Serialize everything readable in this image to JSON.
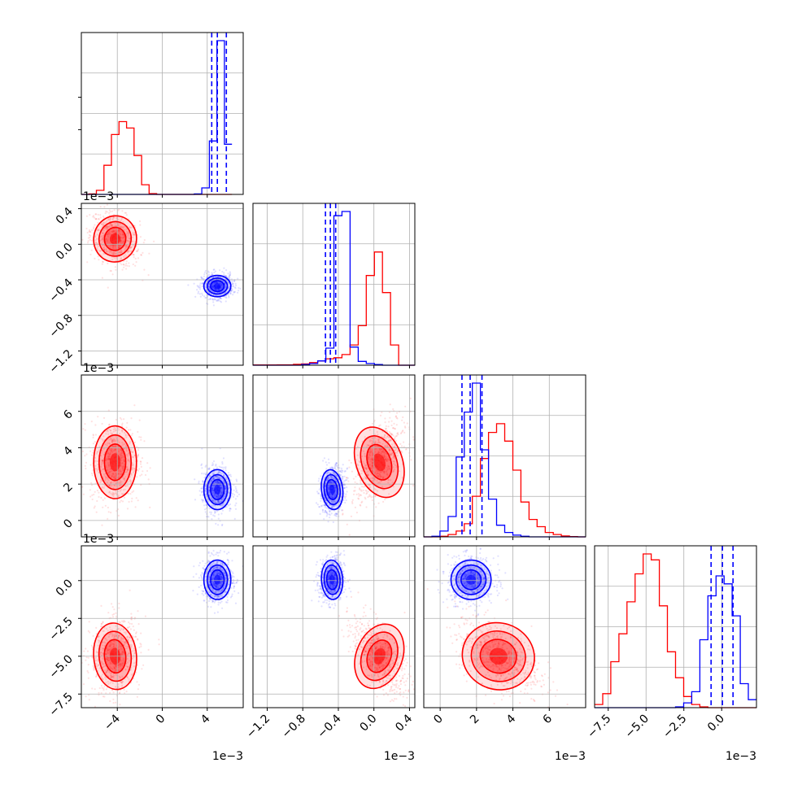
{
  "colors": {
    "red": "#ff0000",
    "blue": "#0000ff",
    "grid": "#b0b0b0",
    "frame": "#000000"
  },
  "chart_data": {
    "type": "corner",
    "description": "Corner plot comparing two posterior sample sets (red, blue) over four parameters",
    "grid": true,
    "parameters": [
      {
        "id": "p0",
        "range": [
          -7.2,
          7.2
        ],
        "ticks": [
          -4,
          0,
          4
        ],
        "tick_labels": [
          "−4",
          "0",
          "4"
        ],
        "offset_label": "1e−3"
      },
      {
        "id": "p1",
        "range": [
          -1.36,
          0.46
        ],
        "ticks": [
          -1.2,
          -0.8,
          -0.4,
          0.0,
          0.4
        ],
        "tick_labels": [
          "−1.2",
          "−0.8",
          "−0.4",
          "0.0",
          "0.4"
        ],
        "offset_label": "1e−3"
      },
      {
        "id": "p2",
        "range": [
          -0.9,
          8.0
        ],
        "ticks": [
          0,
          2,
          4,
          6
        ],
        "tick_labels": [
          "0",
          "2",
          "4",
          "6"
        ],
        "offset_label": "1e−3"
      },
      {
        "id": "p3",
        "range": [
          -8.4,
          2.3
        ],
        "ticks": [
          -7.5,
          -5.0,
          -2.5,
          0.0
        ],
        "tick_labels": [
          "−7.5",
          "−5.0",
          "−2.5",
          "0.0"
        ],
        "offset_label": "1e−3"
      }
    ],
    "series": [
      {
        "color": "#ff0000",
        "means": [
          -4.2,
          0.06,
          3.2,
          -5.0
        ],
        "sigmas": [
          0.95,
          0.13,
          1.0,
          1.1
        ],
        "correlations": {
          "0-1": -0.3,
          "0-2": 0.0,
          "0-3": 0.15,
          "1-2": 0.55,
          "1-3": -0.6,
          "2-3": -0.5
        },
        "histograms": {
          "0": {
            "edges": [
              -7.2,
              6.2
            ],
            "counts": [
              0,
              3,
              25,
              180,
              370,
              450,
              410,
              240,
              60,
              5,
              0,
              0,
              0,
              0,
              0,
              0,
              0,
              0,
              0,
              0
            ]
          },
          "1": {
            "edges": [
              -1.36,
              0.46
            ],
            "counts": [
              1,
              1,
              1,
              2,
              2,
              4,
              6,
              12,
              20,
              30,
              35,
              50,
              95,
              185,
              420,
              530,
              340,
              95,
              0,
              0
            ]
          },
          "2": {
            "edges": [
              -0.9,
              8.0
            ],
            "counts": [
              0,
              0,
              2,
              8,
              20,
              45,
              140,
              270,
              360,
              390,
              330,
              230,
              120,
              60,
              35,
              15,
              8,
              3,
              1,
              0
            ]
          },
          "3": {
            "edges": [
              -8.4,
              2.3
            ],
            "counts": [
              8,
              35,
              115,
              185,
              265,
              335,
              385,
              370,
              255,
              140,
              75,
              28,
              8,
              2,
              0,
              0,
              0,
              0,
              0,
              0
            ]
          }
        }
      },
      {
        "color": "#0000ff",
        "means": [
          4.9,
          -0.47,
          1.7,
          0.05
        ],
        "sigmas": [
          0.6,
          0.06,
          0.55,
          0.65
        ],
        "correlations": {
          "0-1": 0.0,
          "0-2": 0.0,
          "0-3": 0.0,
          "1-2": 0.2,
          "1-3": 0.1,
          "2-3": 0.0
        },
        "quantiles": {
          "0": [
            4.4,
            4.9,
            5.7
          ],
          "1": [
            -0.545,
            -0.49,
            -0.43
          ],
          "2": [
            1.2,
            1.65,
            2.3
          ],
          "3": [
            -0.7,
            0.05,
            0.75
          ]
        },
        "histograms": {
          "0": {
            "edges": [
              -7.2,
              6.2
            ],
            "counts": [
              0,
              0,
              0,
              0,
              0,
              0,
              0,
              0,
              0,
              0,
              0,
              0,
              0,
              0,
              0,
              3,
              40,
              330,
              950,
              310
            ]
          },
          "1": {
            "edges": [
              -1.36,
              0.46
            ],
            "counts": [
              0,
              0,
              0,
              0,
              0,
              0,
              3,
              8,
              20,
              80,
              700,
              720,
              85,
              18,
              8,
              3,
              0,
              0,
              0,
              0
            ]
          },
          "2": {
            "edges": [
              -0.9,
              8.0
            ],
            "counts": [
              0,
              2,
              20,
              70,
              275,
              430,
              530,
              300,
              130,
              40,
              15,
              6,
              2,
              0,
              0,
              0,
              0,
              0,
              0,
              0
            ]
          },
          "3": {
            "edges": [
              -8.4,
              2.3
            ],
            "counts": [
              0,
              0,
              0,
              0,
              0,
              0,
              0,
              0,
              0,
              0,
              2,
              12,
              40,
              170,
              280,
              330,
              310,
              230,
              60,
              20
            ]
          }
        }
      }
    ]
  }
}
